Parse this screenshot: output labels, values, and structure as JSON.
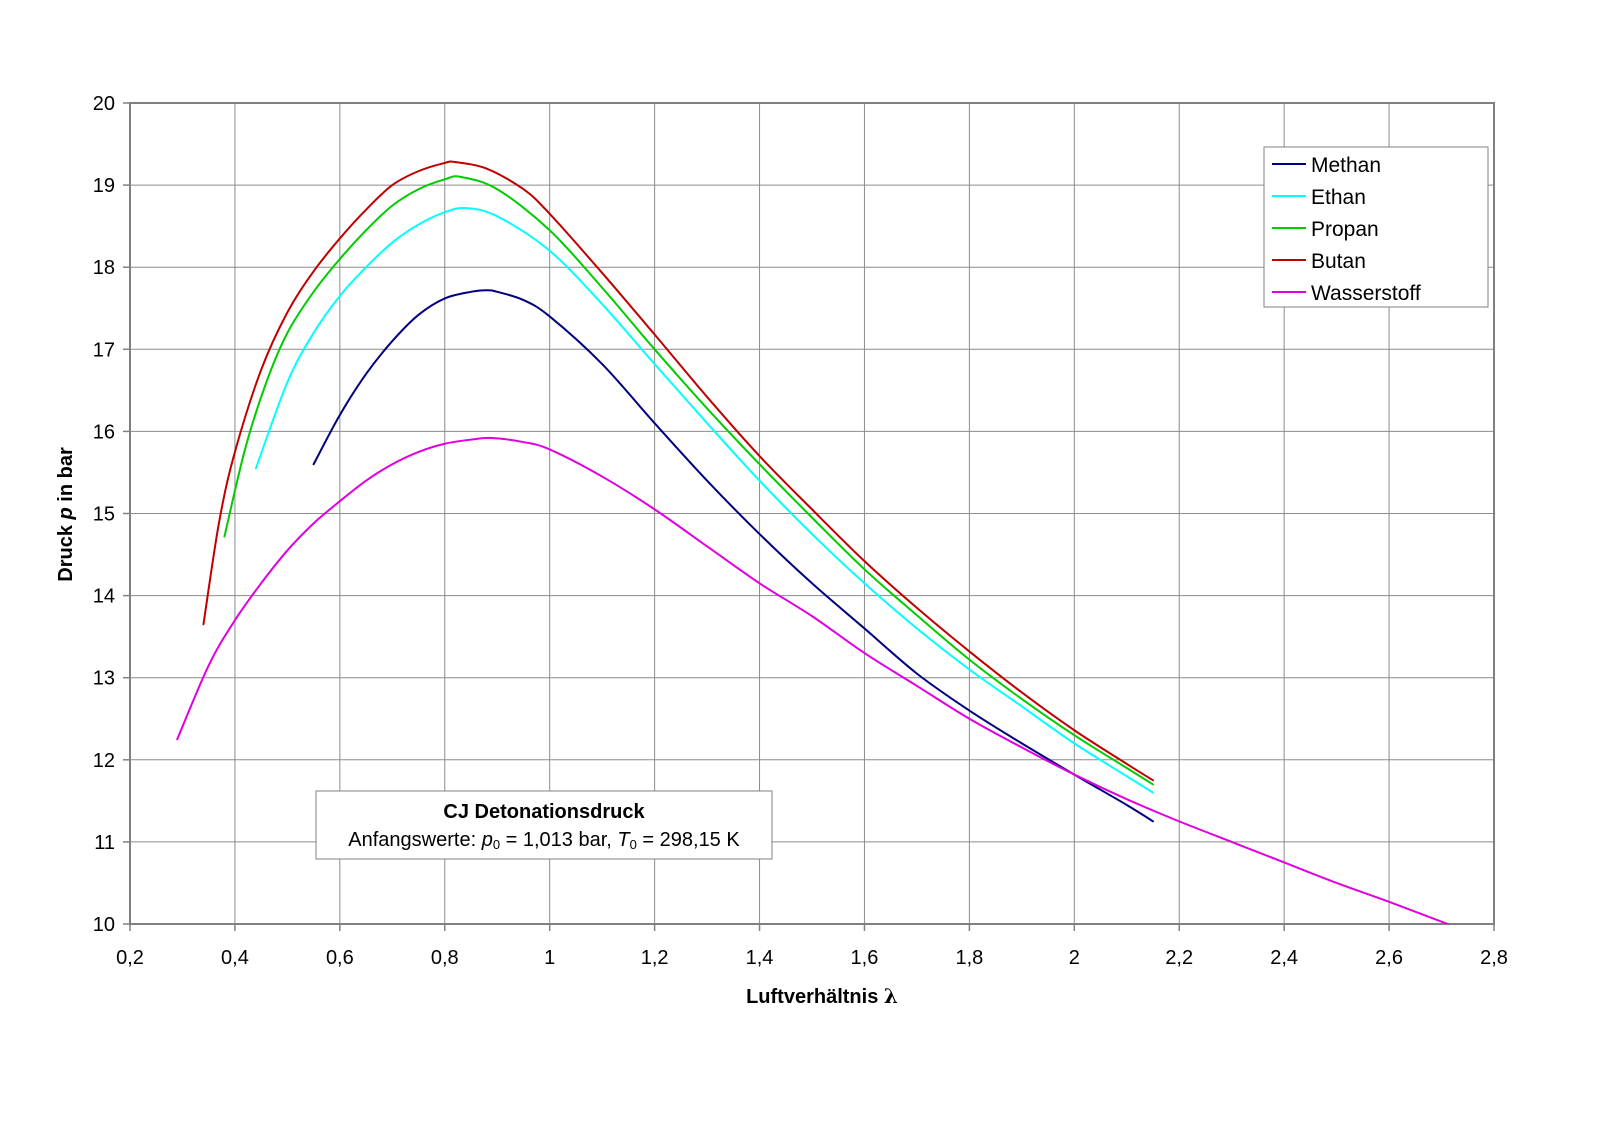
{
  "chart_data": {
    "type": "line",
    "xlabel_prefix": "Luftverhältnis ",
    "xlabel_symbol": "λ",
    "ylabel_pre": "Druck ",
    "ylabel_var": "p",
    "ylabel_post": " in bar",
    "xlim": [
      0.2,
      2.8
    ],
    "ylim": [
      10,
      20
    ],
    "x_ticks": [
      0.2,
      0.4,
      0.6,
      0.8,
      1.0,
      1.2,
      1.4,
      1.6,
      1.8,
      2.0,
      2.2,
      2.4,
      2.6,
      2.8
    ],
    "x_tick_labels": [
      "0,2",
      "0,4",
      "0,6",
      "0,8",
      "1",
      "1,2",
      "1,4",
      "1,6",
      "1,8",
      "2",
      "2,2",
      "2,4",
      "2,6",
      "2,8"
    ],
    "y_ticks": [
      10,
      11,
      12,
      13,
      14,
      15,
      16,
      17,
      18,
      19,
      20
    ],
    "y_tick_labels": [
      "10",
      "11",
      "12",
      "13",
      "14",
      "15",
      "16",
      "17",
      "18",
      "19",
      "20"
    ],
    "grid": true,
    "legend_position": "top-right",
    "annotation": {
      "title": "CJ Detonationsdruck",
      "prefix": "Anfangswerte: ",
      "p_var": "p",
      "p_sub": "0",
      "p_value": " = 1,013 bar, ",
      "t_var": "T",
      "t_sub": "0",
      "t_value": " = 298,15 K"
    },
    "series": [
      {
        "name": "Methan",
        "color": "#000080",
        "x": [
          0.55,
          0.6,
          0.65,
          0.7,
          0.75,
          0.8,
          0.85,
          0.88,
          0.9,
          0.95,
          1.0,
          1.1,
          1.2,
          1.3,
          1.4,
          1.5,
          1.6,
          1.7,
          1.8,
          1.9,
          2.0,
          2.1,
          2.15
        ],
        "y": [
          15.6,
          16.2,
          16.7,
          17.1,
          17.42,
          17.62,
          17.7,
          17.72,
          17.7,
          17.6,
          17.4,
          16.82,
          16.1,
          15.4,
          14.75,
          14.15,
          13.6,
          13.05,
          12.6,
          12.2,
          11.82,
          11.45,
          11.25
        ]
      },
      {
        "name": "Ethan",
        "color": "#00FFFF",
        "x": [
          0.44,
          0.5,
          0.55,
          0.6,
          0.65,
          0.7,
          0.75,
          0.8,
          0.84,
          0.9,
          1.0,
          1.1,
          1.2,
          1.3,
          1.4,
          1.5,
          1.6,
          1.7,
          1.8,
          1.9,
          2.0,
          2.1,
          2.15
        ],
        "y": [
          15.55,
          16.6,
          17.2,
          17.65,
          18.0,
          18.3,
          18.52,
          18.67,
          18.72,
          18.62,
          18.2,
          17.55,
          16.82,
          16.1,
          15.4,
          14.75,
          14.15,
          13.6,
          13.1,
          12.65,
          12.2,
          11.8,
          11.6
        ]
      },
      {
        "name": "Propan",
        "color": "#00CC00",
        "x": [
          0.38,
          0.42,
          0.46,
          0.5,
          0.55,
          0.6,
          0.65,
          0.7,
          0.75,
          0.8,
          0.83,
          0.9,
          1.0,
          1.1,
          1.2,
          1.3,
          1.4,
          1.5,
          1.6,
          1.7,
          1.8,
          1.9,
          2.0,
          2.1,
          2.15
        ],
        "y": [
          14.72,
          15.8,
          16.6,
          17.2,
          17.7,
          18.1,
          18.45,
          18.75,
          18.95,
          19.07,
          19.1,
          18.95,
          18.45,
          17.75,
          17.0,
          16.28,
          15.6,
          14.95,
          14.32,
          13.76,
          13.22,
          12.74,
          12.3,
          11.9,
          11.7
        ]
      },
      {
        "name": "Butan",
        "color": "#C00000",
        "x": [
          0.34,
          0.37,
          0.4,
          0.45,
          0.5,
          0.55,
          0.6,
          0.65,
          0.7,
          0.75,
          0.8,
          0.82,
          0.88,
          0.95,
          1.0,
          1.1,
          1.2,
          1.3,
          1.4,
          1.5,
          1.6,
          1.7,
          1.8,
          1.9,
          2.0,
          2.1,
          2.15
        ],
        "y": [
          13.65,
          14.9,
          15.75,
          16.75,
          17.45,
          17.95,
          18.35,
          18.7,
          19.0,
          19.17,
          19.27,
          19.28,
          19.2,
          18.95,
          18.65,
          17.93,
          17.18,
          16.42,
          15.7,
          15.05,
          14.42,
          13.85,
          13.32,
          12.82,
          12.36,
          11.95,
          11.75
        ]
      },
      {
        "name": "Wasserstoff",
        "color": "#E000E0",
        "x": [
          0.29,
          0.35,
          0.4,
          0.45,
          0.5,
          0.55,
          0.6,
          0.65,
          0.7,
          0.75,
          0.8,
          0.85,
          0.89,
          0.95,
          1.0,
          1.1,
          1.2,
          1.3,
          1.4,
          1.5,
          1.6,
          1.7,
          1.8,
          1.9,
          2.0,
          2.1,
          2.2,
          2.3,
          2.4,
          2.5,
          2.6,
          2.72
        ],
        "y": [
          12.25,
          13.15,
          13.7,
          14.15,
          14.55,
          14.88,
          15.15,
          15.4,
          15.6,
          15.75,
          15.85,
          15.9,
          15.92,
          15.87,
          15.78,
          15.45,
          15.05,
          14.6,
          14.15,
          13.75,
          13.3,
          12.9,
          12.5,
          12.15,
          11.82,
          11.52,
          11.25,
          11.0,
          10.75,
          10.5,
          10.27,
          9.98
        ]
      }
    ]
  }
}
